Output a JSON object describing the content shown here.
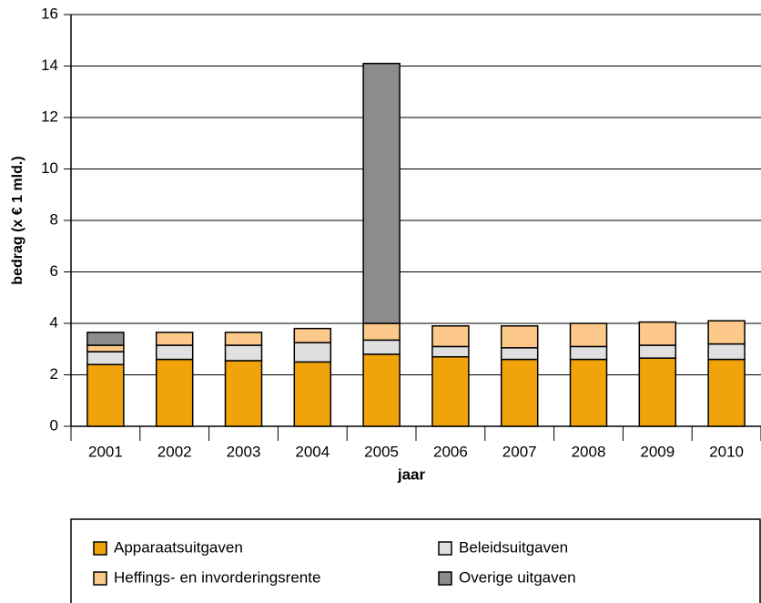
{
  "chart_data": {
    "type": "stacked_bar",
    "x_label": "jaar",
    "y_label": "bedrag (x € 1 mld.)",
    "categories": [
      "2001",
      "2002",
      "2003",
      "2004",
      "2005",
      "2006",
      "2007",
      "2008",
      "2009",
      "2010"
    ],
    "series": [
      {
        "name": "Apparaatsuitgaven",
        "color": "#f0a30a",
        "values": [
          2.4,
          2.6,
          2.55,
          2.5,
          2.8,
          2.7,
          2.6,
          2.6,
          2.65,
          2.6
        ]
      },
      {
        "name": "Beleidsuitgaven",
        "color": "#e0e0e0",
        "values": [
          0.5,
          0.55,
          0.6,
          0.75,
          0.55,
          0.4,
          0.45,
          0.5,
          0.5,
          0.6
        ]
      },
      {
        "name": "Heffings- en invorderingsrente",
        "color": "#fdc98a",
        "values": [
          0.25,
          0.5,
          0.5,
          0.55,
          0.65,
          0.8,
          0.85,
          0.9,
          0.9,
          0.9
        ]
      },
      {
        "name": "Overige uitgaven",
        "color": "#8c8c8c",
        "values": [
          0.5,
          0,
          0,
          0,
          10.1,
          0,
          0,
          0,
          0,
          0
        ]
      }
    ],
    "ylim": [
      0,
      16
    ],
    "yticks": [
      0,
      2,
      4,
      6,
      8,
      10,
      12,
      14,
      16
    ],
    "grid": true
  }
}
